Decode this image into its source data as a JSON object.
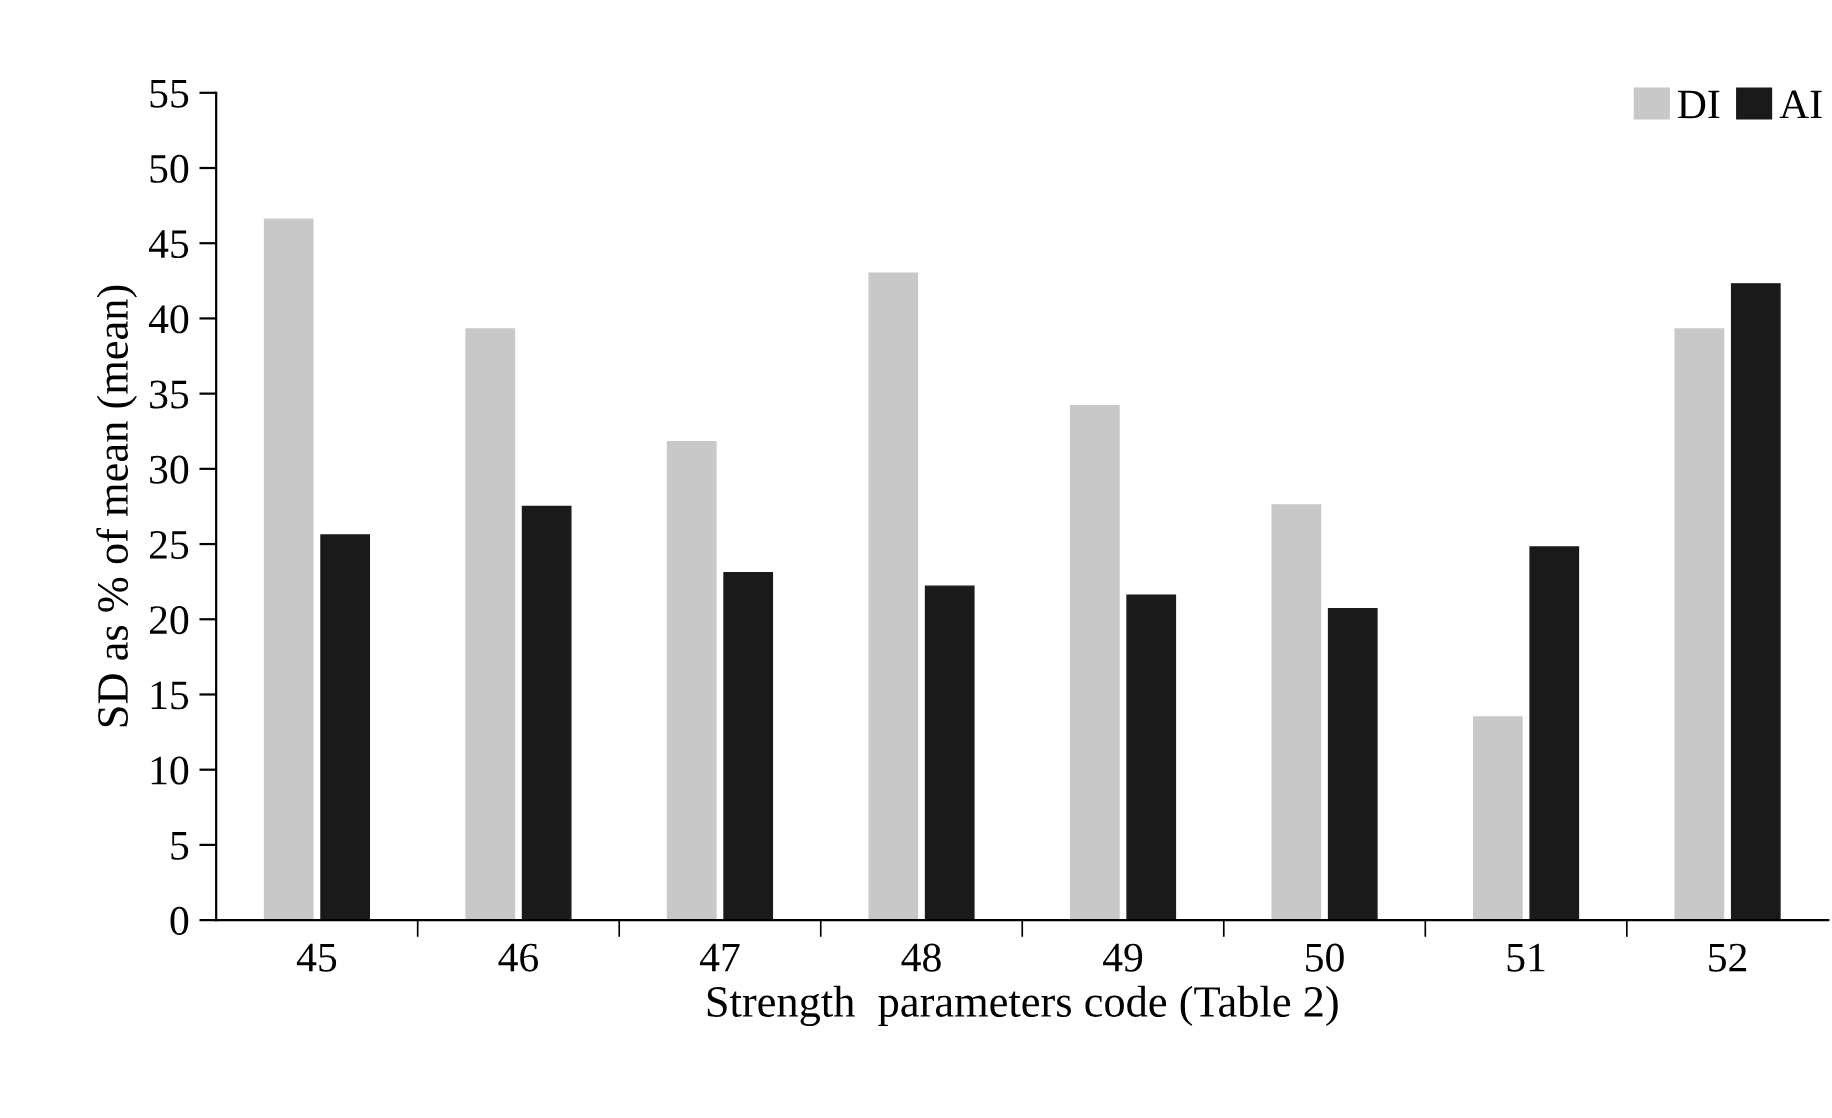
{
  "chart_data": {
    "type": "bar",
    "xlabel": "Strength  parameters code (Table 2)",
    "ylabel": "SD as % of mean (mean)",
    "categories": [
      "45",
      "46",
      "47",
      "48",
      "49",
      "50",
      "51",
      "52"
    ],
    "series": [
      {
        "name": "DI",
        "color": "#c8c8c8",
        "values": [
          46.6,
          39.3,
          31.8,
          43.0,
          34.2,
          27.6,
          13.5,
          39.3
        ]
      },
      {
        "name": "AI",
        "color": "#1a1a1a",
        "values": [
          25.6,
          27.5,
          23.1,
          22.2,
          21.6,
          20.7,
          24.8,
          42.3
        ]
      }
    ],
    "ylim": [
      0,
      55
    ],
    "yticks": [
      0,
      5,
      10,
      15,
      20,
      25,
      30,
      35,
      40,
      45,
      50,
      55
    ],
    "grid": false,
    "legend": "top right"
  }
}
